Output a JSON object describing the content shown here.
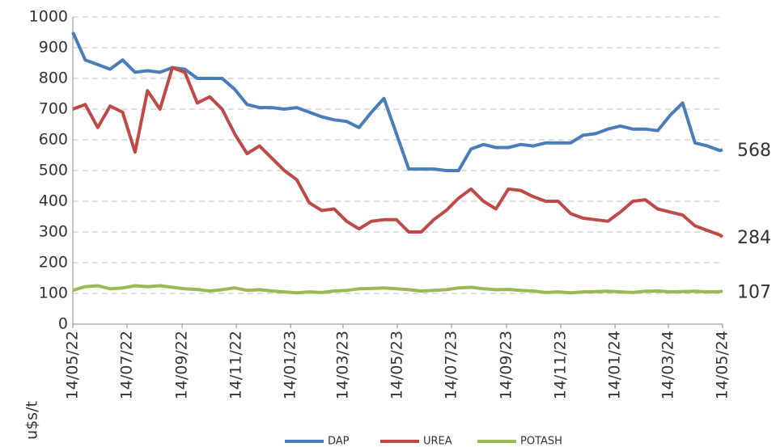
{
  "chart_data": {
    "type": "line",
    "y_label": "u$s/t",
    "x": [
      "2022-05-14",
      "2022-05-28",
      "2022-06-11",
      "2022-06-25",
      "2022-07-09",
      "2022-07-23",
      "2022-08-06",
      "2022-08-20",
      "2022-09-03",
      "2022-09-17",
      "2022-10-01",
      "2022-10-15",
      "2022-10-29",
      "2022-11-12",
      "2022-11-26",
      "2022-12-10",
      "2022-12-24",
      "2023-01-07",
      "2023-01-21",
      "2023-02-04",
      "2023-02-18",
      "2023-03-04",
      "2023-03-18",
      "2023-04-01",
      "2023-04-15",
      "2023-04-29",
      "2023-05-13",
      "2023-05-27",
      "2023-06-10",
      "2023-06-24",
      "2023-07-08",
      "2023-07-22",
      "2023-08-05",
      "2023-08-19",
      "2023-09-02",
      "2023-09-16",
      "2023-09-30",
      "2023-10-14",
      "2023-10-28",
      "2023-11-11",
      "2023-11-25",
      "2023-12-09",
      "2023-12-23",
      "2024-01-06",
      "2024-01-20",
      "2024-02-03",
      "2024-02-17",
      "2024-03-02",
      "2024-03-16",
      "2024-03-30",
      "2024-04-13",
      "2024-04-27",
      "2024-05-11",
      "2024-05-14"
    ],
    "series": [
      {
        "name": "DAP",
        "color": "#4a7ebb",
        "values": [
          950,
          860,
          845,
          830,
          860,
          820,
          825,
          820,
          835,
          830,
          800,
          800,
          800,
          765,
          715,
          705,
          705,
          700,
          705,
          690,
          675,
          665,
          660,
          640,
          690,
          735,
          620,
          505,
          505,
          505,
          500,
          500,
          570,
          585,
          575,
          575,
          585,
          580,
          590,
          590,
          590,
          615,
          620,
          635,
          645,
          635,
          635,
          630,
          680,
          720,
          590,
          580,
          565,
          568
        ]
      },
      {
        "name": "UREA",
        "color": "#be4b48",
        "values": [
          700,
          715,
          640,
          710,
          690,
          560,
          760,
          700,
          835,
          820,
          720,
          740,
          700,
          620,
          555,
          580,
          540,
          500,
          470,
          395,
          370,
          375,
          335,
          310,
          335,
          340,
          340,
          300,
          300,
          340,
          370,
          410,
          440,
          400,
          375,
          440,
          435,
          415,
          400,
          400,
          360,
          345,
          340,
          335,
          365,
          400,
          405,
          375,
          365,
          355,
          320,
          305,
          290,
          284
        ]
      },
      {
        "name": "POTASH",
        "color": "#98b954",
        "values": [
          110,
          122,
          125,
          115,
          118,
          125,
          122,
          125,
          120,
          115,
          113,
          108,
          112,
          118,
          110,
          112,
          108,
          105,
          102,
          105,
          103,
          108,
          110,
          115,
          116,
          118,
          115,
          112,
          108,
          110,
          112,
          118,
          120,
          115,
          112,
          113,
          110,
          108,
          103,
          105,
          102,
          105,
          106,
          107,
          105,
          103,
          107,
          108,
          105,
          106,
          107,
          105,
          106,
          107
        ]
      }
    ],
    "xlim": [
      "2022-05-14",
      "2024-05-14"
    ],
    "xticks": [
      {
        "value": "2022-05-14",
        "label": "14/05/22"
      },
      {
        "value": "2022-07-14",
        "label": "14/07/22"
      },
      {
        "value": "2022-09-14",
        "label": "14/09/22"
      },
      {
        "value": "2022-11-14",
        "label": "14/11/22"
      },
      {
        "value": "2023-01-14",
        "label": "14/01/23"
      },
      {
        "value": "2023-03-14",
        "label": "14/03/23"
      },
      {
        "value": "2023-05-14",
        "label": "14/05/23"
      },
      {
        "value": "2023-07-14",
        "label": "14/07/23"
      },
      {
        "value": "2023-09-14",
        "label": "14/09/23"
      },
      {
        "value": "2023-11-14",
        "label": "14/11/23"
      },
      {
        "value": "2024-01-14",
        "label": "14/01/24"
      },
      {
        "value": "2024-03-14",
        "label": "14/03/24"
      },
      {
        "value": "2024-05-14",
        "label": "14/05/24"
      }
    ],
    "ylim": [
      0,
      1000
    ],
    "yticks": [
      0,
      100,
      200,
      300,
      400,
      500,
      600,
      700,
      800,
      900,
      1000
    ],
    "grid": true,
    "legend": "bottom"
  }
}
